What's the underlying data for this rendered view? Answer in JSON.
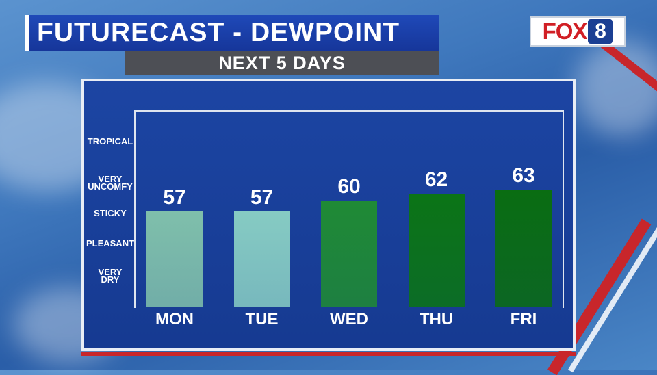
{
  "header": {
    "title": "FUTURECAST - DEWPOINT",
    "subtitle": "NEXT 5 DAYS"
  },
  "logo": {
    "brand": "FOX",
    "channel": "8"
  },
  "colors": {
    "title_bg": "#1f49b8",
    "panel_bg": "#1c45a3",
    "accent_red": "#c8262b",
    "bar_light": "#8fd0c2",
    "bar_dark": "#0a6a12"
  },
  "chart_data": {
    "type": "bar",
    "categories": [
      "MON",
      "TUE",
      "WED",
      "THU",
      "FRI"
    ],
    "values": [
      57,
      57,
      60,
      62,
      63
    ],
    "comfort_levels": [
      "TROPICAL",
      "VERY UNCOMFY",
      "STICKY",
      "PLEASANT",
      "VERY DRY"
    ],
    "bar_colors": [
      "#7fbfab",
      "#86cbc3",
      "#1f8a35",
      "#0b7416",
      "#0a6d12"
    ],
    "ylim": [
      30,
      85
    ],
    "grid": false
  }
}
